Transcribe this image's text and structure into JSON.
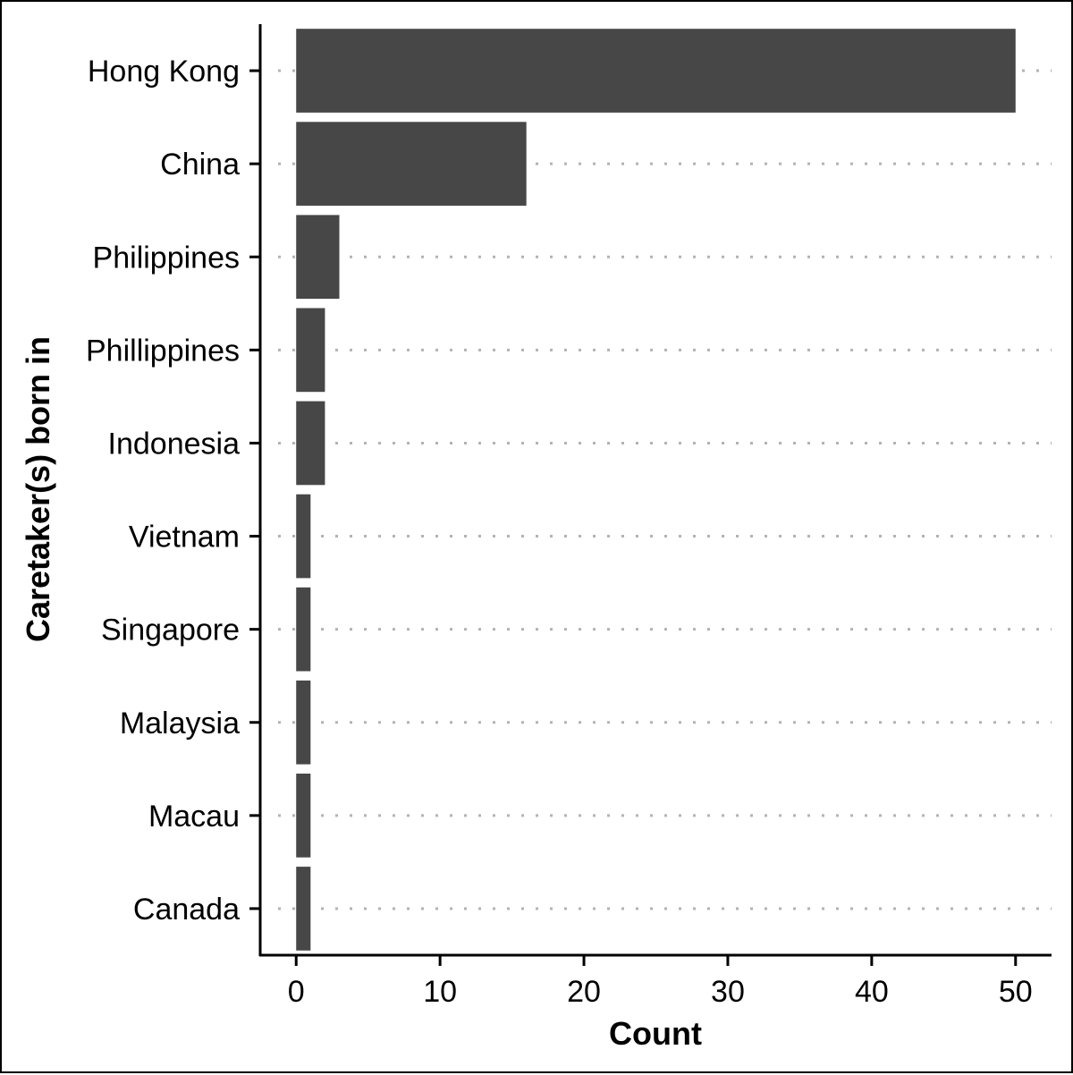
{
  "chart_data": {
    "type": "bar",
    "orientation": "horizontal",
    "title": "",
    "xlabel": "Count",
    "ylabel": "Caretaker(s) born in",
    "categories": [
      "Hong Kong",
      "China",
      "Philippines",
      "Phillippines",
      "Indonesia",
      "Vietnam",
      "Singapore",
      "Malaysia",
      "Macau",
      "Canada"
    ],
    "values": [
      50,
      16,
      3,
      2,
      2,
      1,
      1,
      1,
      1,
      1
    ],
    "xlim": [
      -2.5,
      52.5
    ],
    "xticks": [
      0,
      10,
      20,
      30,
      40,
      50
    ],
    "xtick_labels": [
      "0",
      "10",
      "20",
      "30",
      "40",
      "50"
    ],
    "grid": "horizontal dotted lines at each category",
    "legend": "none",
    "bar_color": "#474747",
    "grid_color": "#b3b3b3"
  }
}
